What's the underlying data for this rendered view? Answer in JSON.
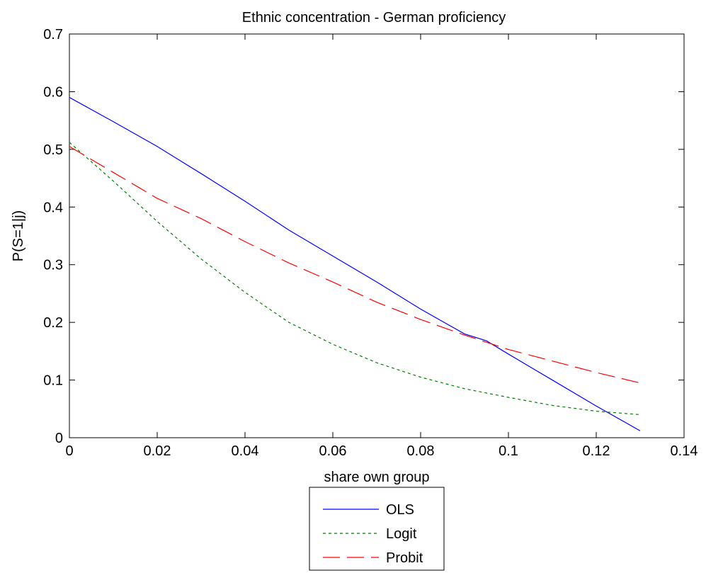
{
  "chart_data": {
    "type": "line",
    "title": "Ethnic concentration - German proficiency",
    "xlabel": "share own group",
    "ylabel": "P(S=1|j)",
    "xlim": [
      0,
      0.14
    ],
    "ylim": [
      0,
      0.7
    ],
    "xticks": [
      0,
      0.02,
      0.04,
      0.06,
      0.08,
      0.1,
      0.12,
      0.14
    ],
    "xtick_labels": [
      "0",
      "0.02",
      "0.04",
      "0.06",
      "0.08",
      "0.1",
      "0.12",
      "0.14"
    ],
    "yticks": [
      0,
      0.1,
      0.2,
      0.3,
      0.4,
      0.5,
      0.6,
      0.7
    ],
    "ytick_labels": [
      "0",
      "0.1",
      "0.2",
      "0.3",
      "0.4",
      "0.5",
      "0.6",
      "0.7"
    ],
    "grid": false,
    "legend_position": "bottom-center outside",
    "series": [
      {
        "name": "OLS",
        "color": "#0000ff",
        "style": "solid",
        "x": [
          0,
          0.01,
          0.02,
          0.03,
          0.04,
          0.05,
          0.06,
          0.07,
          0.08,
          0.09,
          0.095,
          0.1,
          0.11,
          0.12,
          0.13
        ],
        "y": [
          0.59,
          0.548,
          0.505,
          0.458,
          0.41,
          0.36,
          0.315,
          0.27,
          0.223,
          0.18,
          0.168,
          0.145,
          0.1,
          0.055,
          0.012
        ]
      },
      {
        "name": "Logit",
        "color": "#008000",
        "style": "dotted",
        "x": [
          0,
          0.01,
          0.02,
          0.03,
          0.04,
          0.05,
          0.06,
          0.07,
          0.08,
          0.09,
          0.1,
          0.11,
          0.12,
          0.13
        ],
        "y": [
          0.512,
          0.445,
          0.375,
          0.31,
          0.252,
          0.2,
          0.162,
          0.13,
          0.105,
          0.085,
          0.07,
          0.056,
          0.046,
          0.04
        ]
      },
      {
        "name": "Probit",
        "color": "#ff0000",
        "style": "dashed",
        "x": [
          0,
          0.01,
          0.02,
          0.03,
          0.04,
          0.05,
          0.06,
          0.07,
          0.08,
          0.09,
          0.1,
          0.11,
          0.12,
          0.13
        ],
        "y": [
          0.505,
          0.46,
          0.415,
          0.38,
          0.34,
          0.303,
          0.27,
          0.235,
          0.205,
          0.178,
          0.153,
          0.133,
          0.113,
          0.095
        ]
      }
    ]
  }
}
